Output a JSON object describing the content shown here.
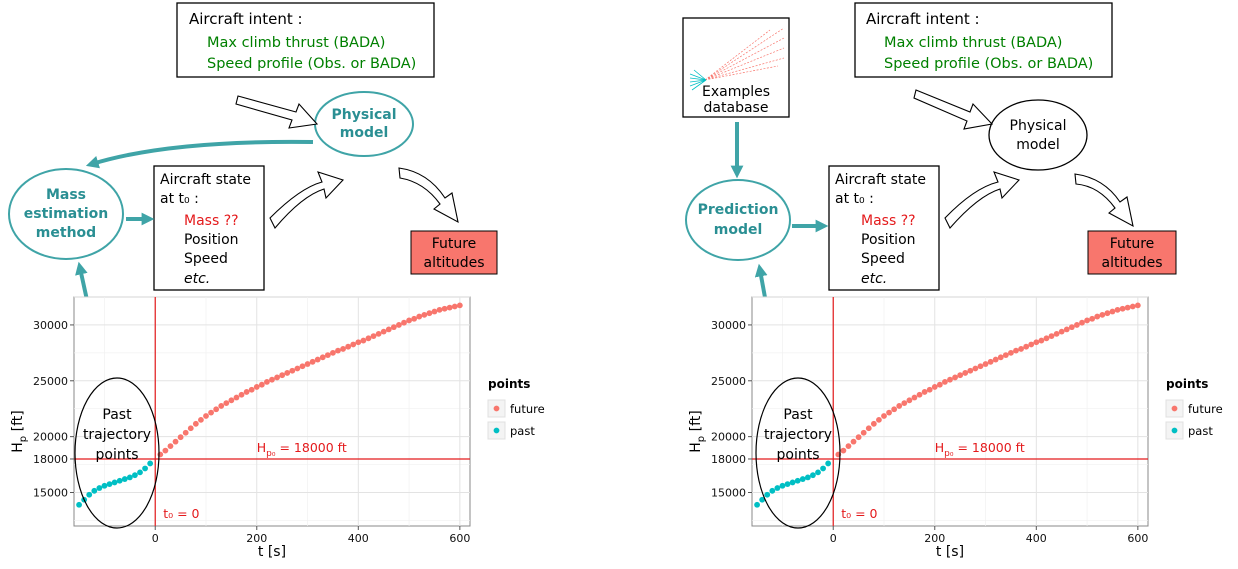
{
  "panels": [
    {
      "id": "mass",
      "intent": {
        "title": "Aircraft intent :",
        "lines": [
          "Max climb thrust (BADA)",
          "Speed profile (Obs. or BADA)"
        ]
      },
      "physical_model": [
        "Physical",
        "model"
      ],
      "model_box": [
        "Mass",
        "estimation",
        "method"
      ],
      "state": {
        "title": [
          "Aircraft state",
          "at t₀ :"
        ],
        "mass": "Mass ??",
        "items": [
          "Position",
          "Speed"
        ],
        "etc": "etc."
      },
      "future": [
        "Future",
        "altitudes"
      ],
      "past_label": [
        "Past",
        "trajectory",
        "points"
      ]
    },
    {
      "id": "prediction",
      "intent": {
        "title": "Aircraft intent :",
        "lines": [
          "Max climb thrust (BADA)",
          "Speed profile (Obs. or BADA)"
        ]
      },
      "database": [
        "Examples",
        "database"
      ],
      "physical_model": [
        "Physical",
        "model"
      ],
      "model_box": [
        "Prediction",
        "model"
      ],
      "state": {
        "title": [
          "Aircraft state",
          "at t₀ :"
        ],
        "mass": "Mass ??",
        "items": [
          "Position",
          "Speed"
        ],
        "etc": "etc."
      },
      "future": [
        "Future",
        "altitudes"
      ],
      "past_label": [
        "Past",
        "trajectory",
        "points"
      ]
    }
  ],
  "colors": {
    "teal": "#3fa4a7",
    "future": "#f8766d",
    "past": "#00bfc4",
    "red_box": "#f8766d",
    "ref_line": "#e41a1c",
    "intent_text": "#008000"
  },
  "chart_data": [
    {
      "type": "scatter",
      "xlabel": "t [s]",
      "ylabel": "H",
      "ylabel_sub": "p",
      "ylabel_unit": " [ft]",
      "xlim": [
        -160,
        620
      ],
      "ylim": [
        12000,
        32500
      ],
      "xticks": [
        0,
        200,
        400,
        600
      ],
      "yticks": [
        15000,
        18000,
        20000,
        25000,
        30000
      ],
      "legend": {
        "title": "points",
        "placement": "right",
        "items": [
          {
            "label": "future",
            "color": "#f8766d"
          },
          {
            "label": "past",
            "color": "#00bfc4"
          }
        ]
      },
      "annotations": {
        "h0_prefix": "H",
        "h0_sub": "p₀",
        "h0_suffix": " = 18000 ft",
        "t0": "t₀ = 0"
      },
      "ref": {
        "x": 0,
        "y": 18000
      },
      "series": [
        {
          "name": "past",
          "x": [
            -150,
            -140,
            -130,
            -120,
            -110,
            -100,
            -90,
            -80,
            -70,
            -60,
            -50,
            -40,
            -30,
            -20,
            -10
          ],
          "y": [
            13900,
            14350,
            14800,
            15150,
            15400,
            15600,
            15750,
            15900,
            16050,
            16200,
            16350,
            16550,
            16800,
            17150,
            17600
          ]
        },
        {
          "name": "future",
          "x": [
            10,
            20,
            30,
            40,
            50,
            60,
            70,
            80,
            90,
            100,
            110,
            120,
            130,
            140,
            150,
            160,
            170,
            180,
            190,
            200,
            210,
            220,
            230,
            240,
            250,
            260,
            270,
            280,
            290,
            300,
            310,
            320,
            330,
            340,
            350,
            360,
            370,
            380,
            390,
            400,
            410,
            420,
            430,
            440,
            450,
            460,
            470,
            480,
            490,
            500,
            510,
            520,
            530,
            540,
            550,
            560,
            570,
            580,
            590,
            600
          ],
          "y": [
            18400,
            18750,
            19150,
            19550,
            19950,
            20350,
            20750,
            21150,
            21500,
            21850,
            22150,
            22450,
            22750,
            23000,
            23250,
            23500,
            23750,
            24000,
            24200,
            24450,
            24650,
            24900,
            25100,
            25300,
            25500,
            25700,
            25900,
            26100,
            26300,
            26500,
            26700,
            26900,
            27100,
            27300,
            27500,
            27700,
            27850,
            28050,
            28250,
            28450,
            28600,
            28800,
            29000,
            29200,
            29400,
            29600,
            29800,
            30000,
            30200,
            30400,
            30550,
            30750,
            30900,
            31050,
            31200,
            31350,
            31450,
            31550,
            31650,
            31750
          ]
        }
      ]
    },
    {
      "type": "scatter",
      "xlabel": "t [s]",
      "ylabel": "H",
      "ylabel_sub": "p",
      "ylabel_unit": " [ft]",
      "xlim": [
        -160,
        620
      ],
      "ylim": [
        12000,
        32500
      ],
      "xticks": [
        0,
        200,
        400,
        600
      ],
      "yticks": [
        15000,
        18000,
        20000,
        25000,
        30000
      ],
      "legend": {
        "title": "points",
        "placement": "right",
        "items": [
          {
            "label": "future",
            "color": "#f8766d"
          },
          {
            "label": "past",
            "color": "#00bfc4"
          }
        ]
      },
      "annotations": {
        "h0_prefix": "H",
        "h0_sub": "p₀",
        "h0_suffix": " = 18000 ft",
        "t0": "t₀ = 0"
      },
      "ref": {
        "x": 0,
        "y": 18000
      },
      "series": [
        {
          "name": "past",
          "x": [
            -150,
            -140,
            -130,
            -120,
            -110,
            -100,
            -90,
            -80,
            -70,
            -60,
            -50,
            -40,
            -30,
            -20,
            -10
          ],
          "y": [
            13900,
            14350,
            14800,
            15150,
            15400,
            15600,
            15750,
            15900,
            16050,
            16200,
            16350,
            16550,
            16800,
            17150,
            17600
          ]
        },
        {
          "name": "future",
          "x": [
            10,
            20,
            30,
            40,
            50,
            60,
            70,
            80,
            90,
            100,
            110,
            120,
            130,
            140,
            150,
            160,
            170,
            180,
            190,
            200,
            210,
            220,
            230,
            240,
            250,
            260,
            270,
            280,
            290,
            300,
            310,
            320,
            330,
            340,
            350,
            360,
            370,
            380,
            390,
            400,
            410,
            420,
            430,
            440,
            450,
            460,
            470,
            480,
            490,
            500,
            510,
            520,
            530,
            540,
            550,
            560,
            570,
            580,
            590,
            600
          ],
          "y": [
            18400,
            18750,
            19150,
            19550,
            19950,
            20350,
            20750,
            21150,
            21500,
            21850,
            22150,
            22450,
            22750,
            23000,
            23250,
            23500,
            23750,
            24000,
            24200,
            24450,
            24650,
            24900,
            25100,
            25300,
            25500,
            25700,
            25900,
            26100,
            26300,
            26500,
            26700,
            26900,
            27100,
            27300,
            27500,
            27700,
            27850,
            28050,
            28250,
            28450,
            28600,
            28800,
            29000,
            29200,
            29400,
            29600,
            29800,
            30000,
            30200,
            30400,
            30550,
            30750,
            30900,
            31050,
            31200,
            31350,
            31450,
            31550,
            31650,
            31750
          ]
        }
      ]
    }
  ]
}
